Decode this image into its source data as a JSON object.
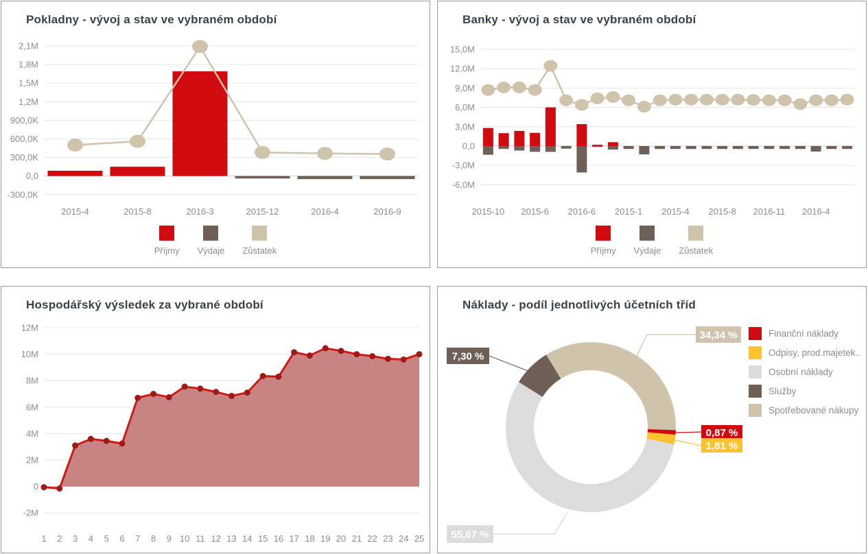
{
  "colors": {
    "red": "#d10a10",
    "dark": "#6e6057",
    "beige": "#cfc3ac",
    "yellow": "#fdc32e",
    "light_gray": "#dcdcdc",
    "rose_fill": "#c98383",
    "line_red": "#cb1b16",
    "dot_red": "#9e1a16",
    "title": "#37424a",
    "axis_text": "#8c8c8c",
    "grid": "#e6e6e6",
    "zero_line": "#cfcfcf",
    "card_border": "#9a9a9a"
  },
  "chart_data": [
    {
      "id": "pokladny",
      "type": "bar",
      "title": "Pokladny - vývoj a stav ve vybraném období",
      "categories": [
        "2015-4",
        "2015-8",
        "2016-3",
        "2015-12",
        "2016-4",
        "2016-9"
      ],
      "series": [
        {
          "name": "Příjmy",
          "type": "bar",
          "color": "#d10a10",
          "values": [
            85000,
            150000,
            1690000,
            0,
            0,
            0
          ]
        },
        {
          "name": "Výdaje",
          "type": "bar",
          "color": "#6e6057",
          "values": [
            0,
            0,
            0,
            -40000,
            -50000,
            -50000
          ]
        },
        {
          "name": "Zůstatek",
          "type": "line",
          "color": "#cfc3ac",
          "values": [
            500000,
            560000,
            2090000,
            380000,
            365000,
            355000
          ]
        }
      ],
      "y_ticks": [
        {
          "label": "2,1M",
          "v": 2100000
        },
        {
          "label": "1,8M",
          "v": 1800000
        },
        {
          "label": "1,5M",
          "v": 1500000
        },
        {
          "label": "1,2M",
          "v": 1200000
        },
        {
          "label": "900,0K",
          "v": 900000
        },
        {
          "label": "600,0K",
          "v": 600000
        },
        {
          "label": "300,0K",
          "v": 300000
        },
        {
          "label": "0,0",
          "v": 0
        },
        {
          "label": "-300,0K",
          "v": -300000
        }
      ],
      "x_labels": [
        {
          "i": 0,
          "label": "2015-4"
        },
        {
          "i": 1,
          "label": "2015-8"
        },
        {
          "i": 2,
          "label": "2016-3"
        },
        {
          "i": 3,
          "label": "2015-12"
        },
        {
          "i": 4,
          "label": "2016-4"
        },
        {
          "i": 5,
          "label": "2016-9"
        }
      ],
      "ylim": [
        -600000,
        2250000
      ],
      "grid": true,
      "legend_position": "bottom"
    },
    {
      "id": "banky",
      "type": "bar",
      "title": "Banky - vývoj a stav ve vybraném období",
      "categories": [
        "",
        "",
        "",
        "",
        "",
        "",
        "",
        "",
        "",
        "",
        "",
        "",
        "",
        "",
        "",
        "",
        "",
        "",
        "",
        "",
        "",
        "",
        "",
        ""
      ],
      "series": [
        {
          "name": "Příjmy",
          "type": "bar",
          "color": "#d10a10",
          "values": [
            2800000,
            2000000,
            2350000,
            2050000,
            6000000,
            0,
            3400000,
            200000,
            600000,
            0,
            0,
            0,
            0,
            0,
            0,
            0,
            0,
            0,
            0,
            0,
            0,
            0,
            0,
            0
          ]
        },
        {
          "name": "Výdaje",
          "type": "bar",
          "color": "#6e6057",
          "values": [
            -1350000,
            -450000,
            -700000,
            -900000,
            -900000,
            -400000,
            -4100000,
            -150000,
            -550000,
            -450000,
            -1300000,
            -450000,
            -450000,
            -450000,
            -450000,
            -450000,
            -450000,
            -450000,
            -450000,
            -450000,
            -450000,
            -850000,
            -450000,
            -450000
          ]
        },
        {
          "name": "Zůstatek",
          "type": "line",
          "color": "#cfc3ac",
          "values": [
            8700000,
            9100000,
            9100000,
            8700000,
            12450000,
            7100000,
            6400000,
            7400000,
            7600000,
            7100000,
            6100000,
            7100000,
            7200000,
            7200000,
            7200000,
            7200000,
            7200000,
            7150000,
            7100000,
            7100000,
            6500000,
            7100000,
            7100000,
            7200000
          ]
        }
      ],
      "y_ticks": [
        {
          "label": "15,0M",
          "v": 15000000
        },
        {
          "label": "12,0M",
          "v": 12000000
        },
        {
          "label": "9,0M",
          "v": 9000000
        },
        {
          "label": "6,0M",
          "v": 6000000
        },
        {
          "label": "3,0M",
          "v": 3000000
        },
        {
          "label": "0,0",
          "v": 0
        },
        {
          "label": "-3,0M",
          "v": -3000000
        },
        {
          "label": "-6,0M",
          "v": -6000000
        }
      ],
      "x_labels": [
        {
          "i": 0,
          "label": "2015-10"
        },
        {
          "i": 3,
          "label": "2015-6"
        },
        {
          "i": 6,
          "label": "2016-6"
        },
        {
          "i": 9,
          "label": "2015-1"
        },
        {
          "i": 12,
          "label": "2015-4"
        },
        {
          "i": 15,
          "label": "2015-8"
        },
        {
          "i": 18,
          "label": "2016-11"
        },
        {
          "i": 21,
          "label": "2016-4"
        }
      ],
      "ylim": [
        -6000000,
        15000000
      ],
      "grid": true,
      "legend_position": "bottom"
    },
    {
      "id": "hospodarsky-vysledek",
      "type": "area",
      "title": "Hospodářský výsledek za vybrané období",
      "categories": [
        "1",
        "2",
        "3",
        "4",
        "5",
        "6",
        "7",
        "8",
        "9",
        "10",
        "11",
        "12",
        "13",
        "14",
        "15",
        "16",
        "17",
        "18",
        "19",
        "20",
        "21",
        "22",
        "23",
        "24",
        "25"
      ],
      "values": [
        -50000,
        -150000,
        3100000,
        3600000,
        3450000,
        3250000,
        6700000,
        7000000,
        6750000,
        7550000,
        7400000,
        7150000,
        6850000,
        7100000,
        8350000,
        8300000,
        10150000,
        9900000,
        10450000,
        10250000,
        10000000,
        9850000,
        9650000,
        9600000,
        10000000
      ],
      "y_ticks": [
        {
          "label": "12M",
          "v": 12000000
        },
        {
          "label": "10M",
          "v": 10000000
        },
        {
          "label": "8M",
          "v": 8000000
        },
        {
          "label": "6M",
          "v": 6000000
        },
        {
          "label": "4M",
          "v": 4000000
        },
        {
          "label": "2M",
          "v": 2000000
        },
        {
          "label": "0",
          "v": 0
        },
        {
          "label": "-2M",
          "v": -2000000
        }
      ],
      "ylim": [
        -2000000,
        12000000
      ],
      "line_color": "#cb1b16",
      "fill_color": "#c98383",
      "dot_color": "#9e1a16",
      "grid": true
    },
    {
      "id": "naklady-podil",
      "type": "pie",
      "donut": true,
      "title": "Náklady - podíl jednotlivých účetních tříd",
      "slices": [
        {
          "name": "Spotřebované nákupy",
          "pct": 34.34,
          "pct_label": "34,34 %",
          "color": "#cfc3ac"
        },
        {
          "name": "Finanční náklady",
          "pct": 0.87,
          "pct_label": "0,87 %",
          "color": "#d10a10"
        },
        {
          "name": "Odpisy, prod.majetek..",
          "pct": 1.81,
          "pct_label": "1,81 %",
          "color": "#fdc32e"
        },
        {
          "name": "Osobní náklady",
          "pct": 55.67,
          "pct_label": "55,67 %",
          "color": "#dcdcdc"
        },
        {
          "name": "Služby",
          "pct": 7.3,
          "pct_label": "7,30 %",
          "color": "#6e6057"
        }
      ],
      "legend_position": "right"
    }
  ]
}
